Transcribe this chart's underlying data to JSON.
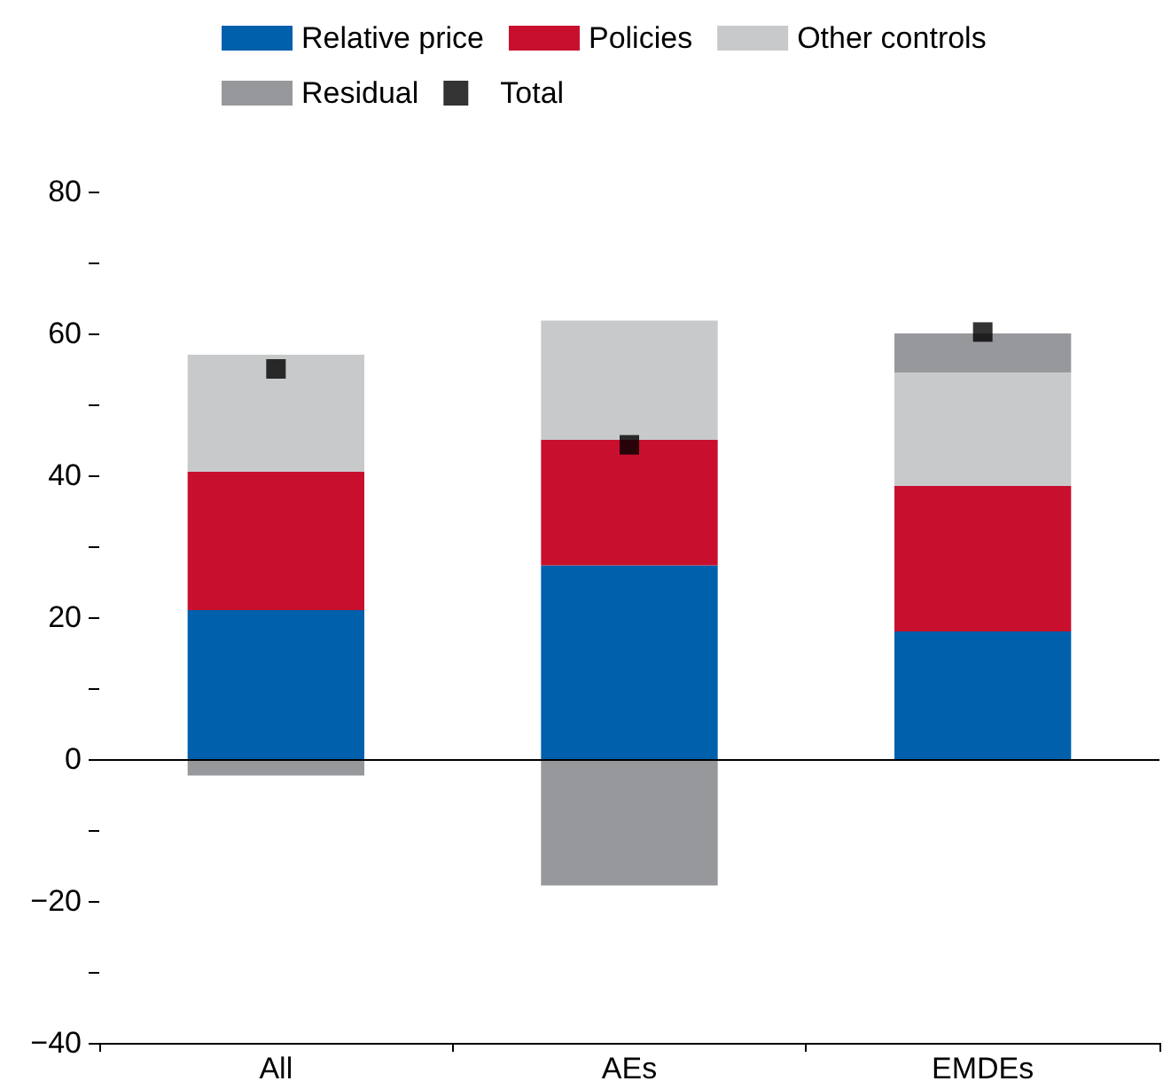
{
  "chart_data": {
    "type": "bar",
    "stacked": true,
    "categories": [
      "All",
      "AEs",
      "EMDEs"
    ],
    "series": [
      {
        "name": "Relative price",
        "color": "#0060ac",
        "values": [
          21,
          27.3,
          18
        ]
      },
      {
        "name": "Policies",
        "color": "#c8102e",
        "values": [
          19.5,
          17.7,
          20.5
        ]
      },
      {
        "name": "Other controls",
        "color": "#c8c9cb",
        "values": [
          16.5,
          16.8,
          16
        ]
      },
      {
        "name": "Residual",
        "color": "#97989b",
        "values": [
          -2.3,
          -17.8,
          5.5
        ]
      },
      {
        "name": "Total",
        "type": "scatter",
        "marker": "square",
        "color": "#000000",
        "x": [
          "All",
          "AEs",
          "EMDEs"
        ],
        "values": [
          55,
          44.3,
          60.2
        ]
      }
    ],
    "ylim": [
      -40,
      80
    ],
    "yticks": [
      -40,
      {
        "value": -30,
        "label": null
      },
      -20,
      {
        "value": -10,
        "label": null
      },
      0,
      {
        "value": 10,
        "label": null
      },
      20,
      {
        "value": 30,
        "label": null
      },
      40,
      {
        "value": 50,
        "label": null
      },
      60,
      {
        "value": 70,
        "label": null
      },
      80
    ],
    "ref_lines": [
      {
        "axis": "y",
        "value": 0,
        "color": "#000000"
      }
    ],
    "grid": false,
    "legend": "top"
  }
}
